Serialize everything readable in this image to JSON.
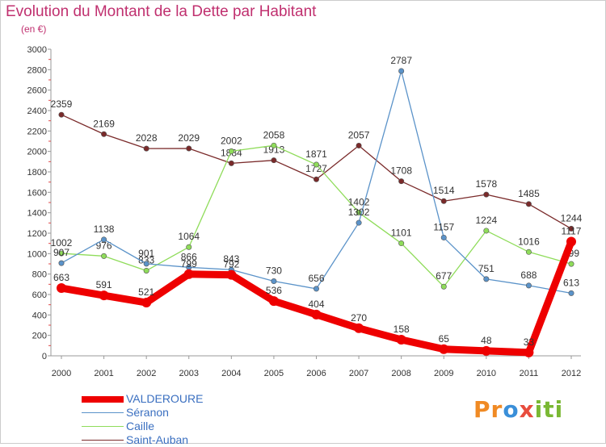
{
  "title": "Evolution du Montant de la Dette par Habitant",
  "subtitle": "(en €)",
  "logo_text": "Proxiti",
  "chart_data": {
    "type": "line",
    "x": [
      "2000",
      "2001",
      "2002",
      "2003",
      "2004",
      "2005",
      "2006",
      "2007",
      "2008",
      "2009",
      "2010",
      "2011",
      "2012"
    ],
    "ylim": [
      0,
      3000
    ],
    "yticks": [
      0,
      200,
      400,
      600,
      800,
      1000,
      1200,
      1400,
      1600,
      1800,
      2000,
      2200,
      2400,
      2600,
      2800,
      3000
    ],
    "grid": false,
    "legend_position": "bottom-left",
    "series": [
      {
        "name": "VALDEROURE",
        "color": "#ee0000",
        "values": [
          663,
          591,
          521,
          799,
          792,
          536,
          404,
          270,
          158,
          65,
          48,
          33,
          1117
        ]
      },
      {
        "name": "Séranon",
        "color": "#5b93c9",
        "values": [
          907,
          1138,
          901,
          866,
          843,
          730,
          656,
          1302,
          2787,
          1157,
          751,
          688,
          613
        ]
      },
      {
        "name": "Caille",
        "color": "#8fdc5a",
        "values": [
          1002,
          976,
          833,
          1064,
          2002,
          2058,
          1871,
          1402,
          1101,
          677,
          1224,
          1016,
          899
        ]
      },
      {
        "name": "Saint-Auban",
        "color": "#7a2a2a",
        "values": [
          2359,
          2169,
          2028,
          2029,
          1884,
          1913,
          1727,
          2057,
          1708,
          1514,
          1578,
          1485,
          1244
        ]
      }
    ]
  }
}
